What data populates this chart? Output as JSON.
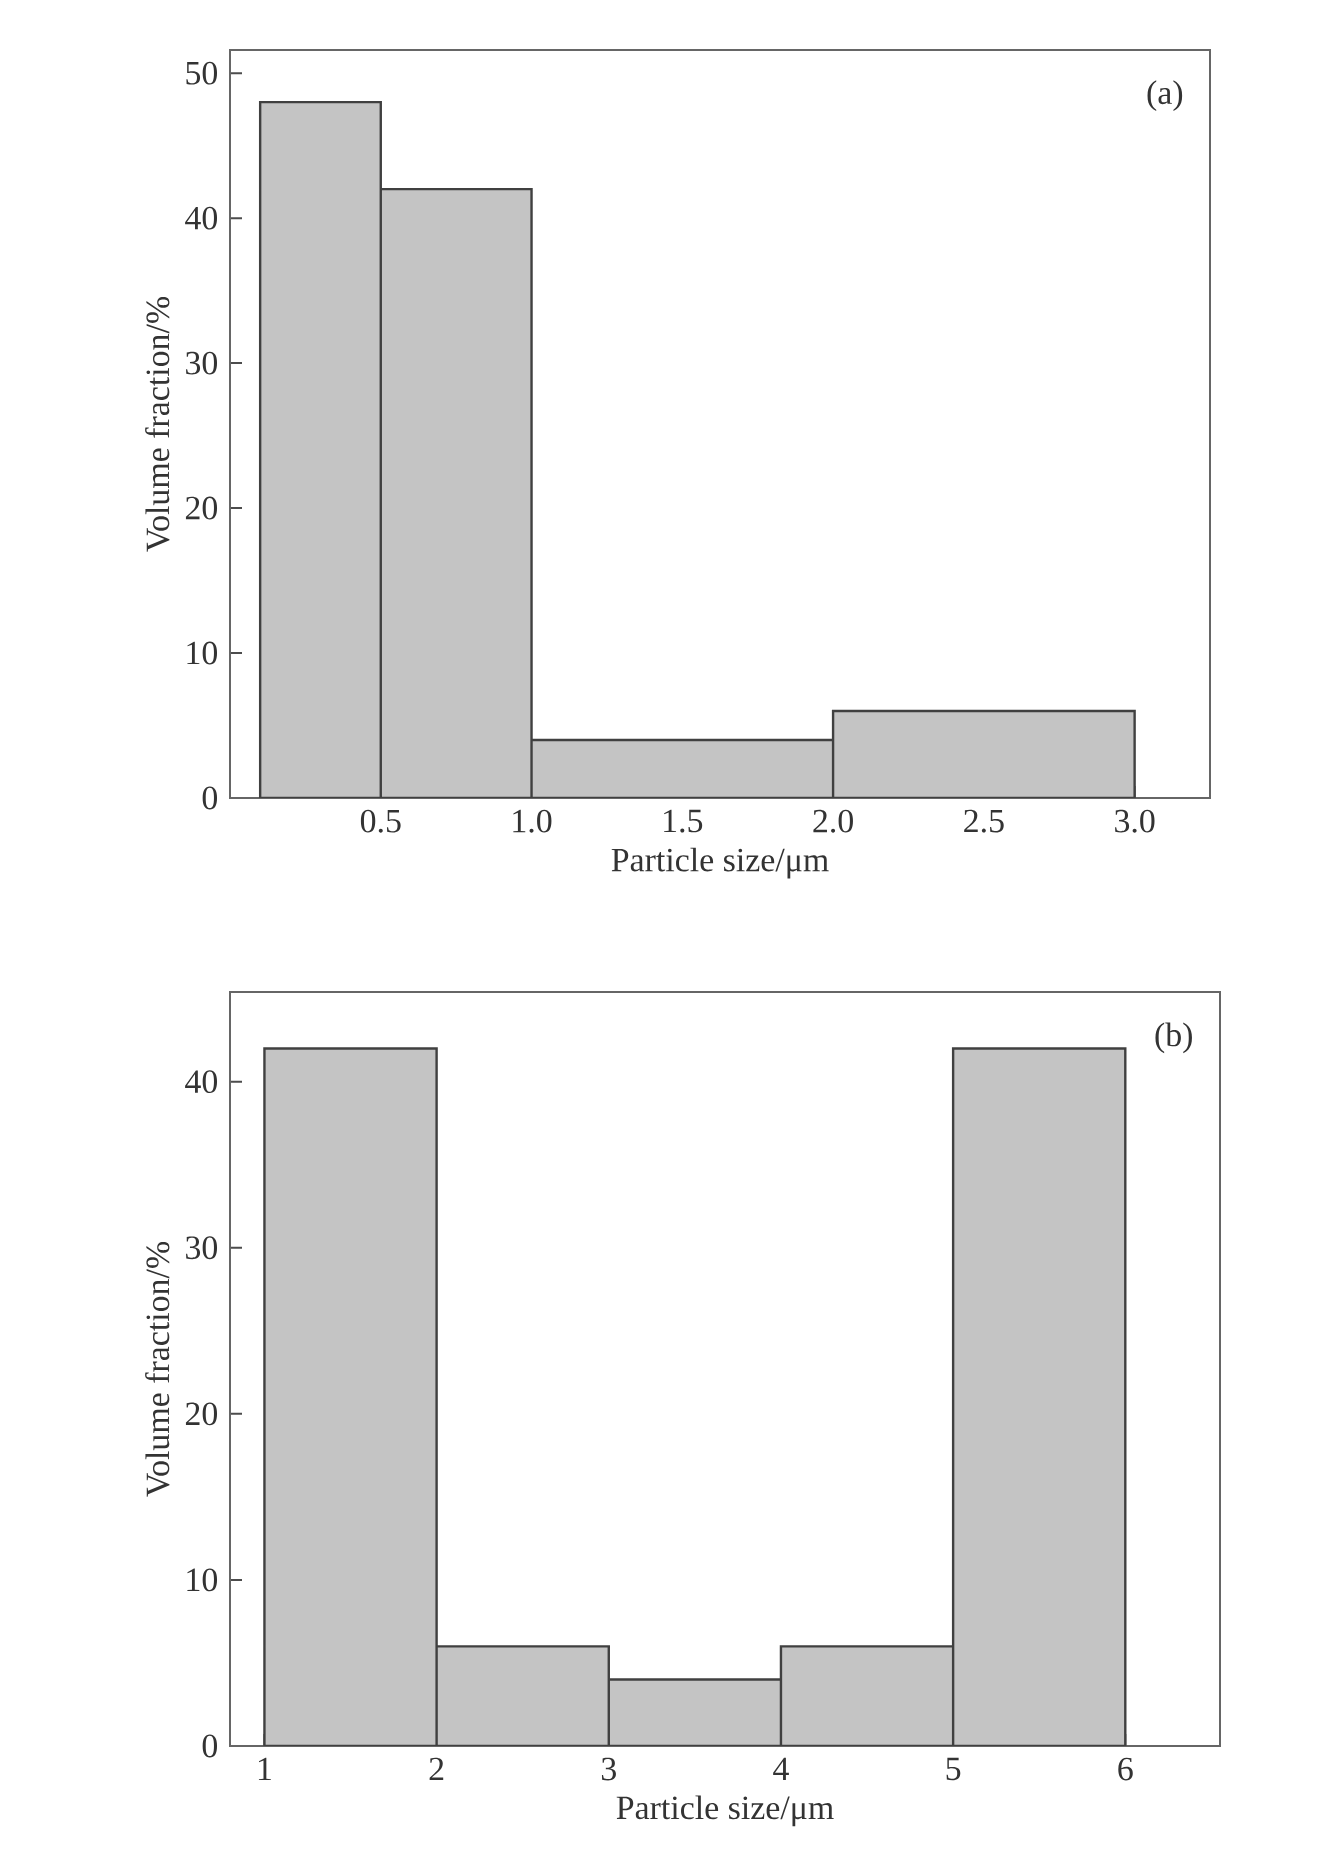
{
  "chart_data": [
    {
      "type": "histogram",
      "bins": [
        0.1,
        0.5,
        1.0,
        2.0,
        3.0
      ],
      "values": [
        48,
        42,
        4,
        6
      ],
      "color": "#c4c4c4",
      "xlabel": "Particle size/μm",
      "ylabel": "Volume fraction/%",
      "xlim": [
        0,
        3.25
      ],
      "ylim": [
        0,
        51.6
      ],
      "xticks": [
        0.5,
        {
          "value": 1.0,
          "label": "1.0"
        },
        1.5,
        {
          "value": 2.0,
          "label": "2.0"
        },
        2.5,
        {
          "value": 3.0,
          "label": "3.0"
        }
      ],
      "yticks": [
        0,
        10,
        20,
        30,
        40,
        50
      ],
      "annotations": [
        "(a)"
      ]
    },
    {
      "type": "histogram",
      "bins": [
        1,
        2,
        3,
        4,
        5,
        6
      ],
      "values": [
        42,
        6,
        4,
        6,
        42
      ],
      "color": "#c4c4c4",
      "xlabel": "Particle size/μm",
      "ylabel": "Volume fraction/%",
      "xlim": [
        0.8,
        6.55
      ],
      "ylim": [
        0,
        45.4
      ],
      "xticks": [
        1,
        2,
        3,
        4,
        5,
        6
      ],
      "yticks": [
        0,
        10,
        20,
        30,
        40
      ],
      "annotations": [
        "(b)"
      ]
    }
  ]
}
